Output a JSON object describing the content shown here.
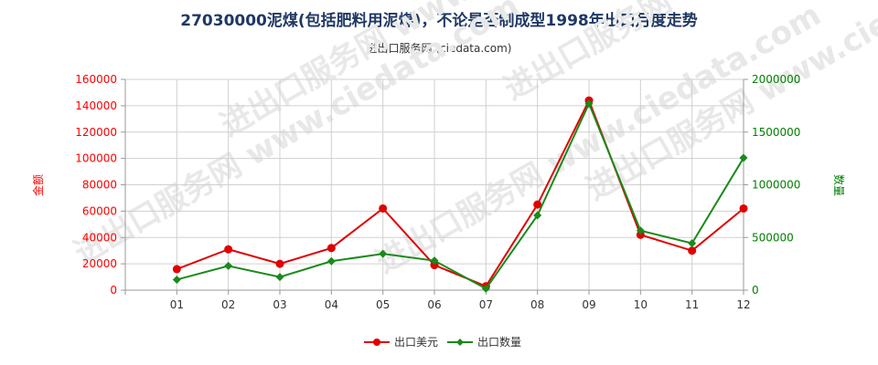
{
  "chart_data": {
    "type": "line",
    "title": "27030000泥煤(包括肥料用泥煤)，不论是否制成型1998年出口月度走势",
    "subtitle": "进出口服务网 (ciedata.com)",
    "watermark": "进出口服务网 www.ciedata.com",
    "categories": [
      "01",
      "02",
      "03",
      "04",
      "05",
      "06",
      "07",
      "08",
      "09",
      "10",
      "11",
      "12"
    ],
    "ylabel_left": "金额",
    "ylabel_right": "数量",
    "ylim_left": [
      0,
      160000
    ],
    "ylim_right": [
      0,
      2000000
    ],
    "yticks_left": [
      "0",
      "20000",
      "40000",
      "60000",
      "80000",
      "100000",
      "120000",
      "140000",
      "160000"
    ],
    "yticks_right": [
      "0",
      "500000",
      "1000000",
      "1500000",
      "2000000"
    ],
    "grid": true,
    "legend_position": "bottom",
    "series": [
      {
        "name": "出口美元",
        "axis": "left",
        "color": "#e00000",
        "values": [
          16000,
          31000,
          20000,
          32000,
          62000,
          19000,
          3000,
          65000,
          144000,
          42000,
          30000,
          62000
        ]
      },
      {
        "name": "出口数量",
        "axis": "right",
        "color": "#1a8a1a",
        "values": [
          100000,
          230000,
          125000,
          275000,
          345000,
          280000,
          15000,
          710000,
          1770000,
          565000,
          445000,
          1255000
        ]
      }
    ]
  }
}
